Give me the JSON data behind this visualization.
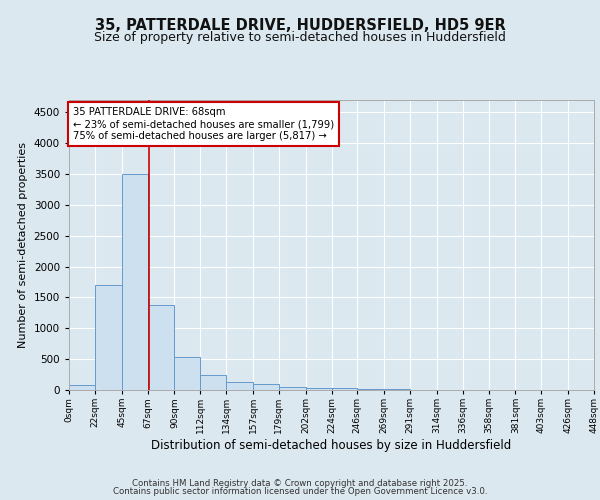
{
  "title_line1": "35, PATTERDALE DRIVE, HUDDERSFIELD, HD5 9ER",
  "title_line2": "Size of property relative to semi-detached houses in Huddersfield",
  "xlabel": "Distribution of semi-detached houses by size in Huddersfield",
  "ylabel": "Number of semi-detached properties",
  "bin_edges": [
    0,
    22,
    45,
    67,
    90,
    112,
    134,
    157,
    179,
    202,
    224,
    246,
    269,
    291,
    314,
    336,
    358,
    381,
    403,
    426,
    448
  ],
  "bin_labels": [
    "0sqm",
    "22sqm",
    "45sqm",
    "67sqm",
    "90sqm",
    "112sqm",
    "134sqm",
    "157sqm",
    "179sqm",
    "202sqm",
    "224sqm",
    "246sqm",
    "269sqm",
    "291sqm",
    "314sqm",
    "336sqm",
    "358sqm",
    "381sqm",
    "403sqm",
    "426sqm",
    "448sqm"
  ],
  "bar_heights": [
    75,
    1700,
    3500,
    1380,
    540,
    240,
    130,
    90,
    55,
    40,
    30,
    15,
    10,
    5,
    5,
    5,
    5,
    5,
    0,
    0,
    0
  ],
  "bar_color": "#cce0f0",
  "bar_edge_color": "#6699cc",
  "property_size": 68,
  "property_line_color": "#cc0000",
  "annotation_text": "35 PATTERDALE DRIVE: 68sqm\n← 23% of semi-detached houses are smaller (1,799)\n75% of semi-detached houses are larger (5,817) →",
  "annotation_box_color": "#ffffff",
  "annotation_box_edge_color": "#cc0000",
  "ylim": [
    0,
    4700
  ],
  "yticks": [
    0,
    500,
    1000,
    1500,
    2000,
    2500,
    3000,
    3500,
    4000,
    4500
  ],
  "figure_bg": "#dce8f0",
  "axes_bg": "#dce8f0",
  "grid_color": "#ffffff",
  "footer_line1": "Contains HM Land Registry data © Crown copyright and database right 2025.",
  "footer_line2": "Contains public sector information licensed under the Open Government Licence v3.0.",
  "title_fontsize": 10.5,
  "subtitle_fontsize": 9
}
